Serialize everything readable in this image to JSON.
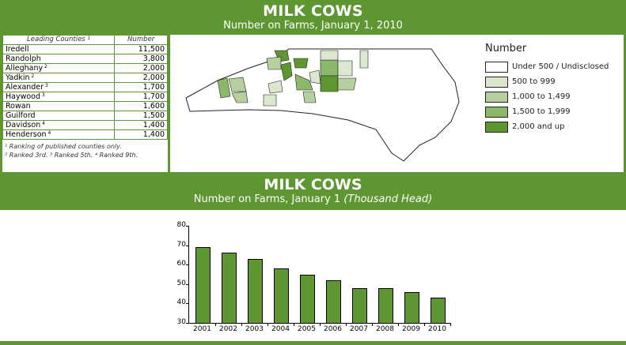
{
  "header_top": {
    "title": "MILK COWS",
    "subtitle": "Number on Farms, January 1, 2010"
  },
  "table": {
    "col_county": "Leading Counties",
    "col_county_sup": "1",
    "col_number": "Number",
    "rows": [
      {
        "county": "Iredell",
        "sup": "",
        "number": "11,500"
      },
      {
        "county": "Randolph",
        "sup": "",
        "number": "3,800"
      },
      {
        "county": "Alleghany",
        "sup": "2",
        "number": "2,000"
      },
      {
        "county": "Yadkin",
        "sup": "2",
        "number": "2,000"
      },
      {
        "county": "Alexander",
        "sup": "3",
        "number": "1,700"
      },
      {
        "county": "Haywood",
        "sup": "3",
        "number": "1,700"
      },
      {
        "county": "Rowan",
        "sup": "",
        "number": "1,600"
      },
      {
        "county": "Guilford",
        "sup": "",
        "number": "1,500"
      },
      {
        "county": "Davidson",
        "sup": "4",
        "number": "1,400"
      },
      {
        "county": "Henderson",
        "sup": "4",
        "number": "1,400"
      }
    ],
    "footnote1": "¹ Ranking of published counties only.",
    "footnote2": "² Ranked 3rd. ³ Ranked 5th. ⁴ Ranked 9th."
  },
  "legend": {
    "title": "Number",
    "items": [
      {
        "label": "Under 500 / Undisclosed",
        "color": "#ffffff"
      },
      {
        "label": "500 to 999",
        "color": "#dbe7cf"
      },
      {
        "label": "1,000 to 1,499",
        "color": "#b5d09e"
      },
      {
        "label": "1,500 to 1,999",
        "color": "#8cb86a"
      },
      {
        "label": "2,000 and up",
        "color": "#5e9732"
      }
    ]
  },
  "header_bottom": {
    "title": "MILK COWS",
    "subtitle": "Number on Farms, January 1",
    "subtitle_italic": "(Thousand Head)"
  },
  "chart_data": {
    "type": "bar",
    "title": "MILK COWS",
    "subtitle": "Number on Farms, January 1 (Thousand Head)",
    "categories": [
      "2001",
      "2002",
      "2003",
      "2004",
      "2005",
      "2006",
      "2007",
      "2008",
      "2009",
      "2010"
    ],
    "values": [
      69,
      66,
      63,
      58,
      55,
      52,
      48,
      48,
      46,
      43
    ],
    "xlabel": "",
    "ylabel": "Thousand Head",
    "ylim": [
      30,
      80
    ],
    "yticks": [
      30,
      40,
      50,
      60,
      70,
      80
    ],
    "grid": false,
    "bar_color": "#5e9732"
  },
  "colors": {
    "brand_green": "#5e9732"
  }
}
